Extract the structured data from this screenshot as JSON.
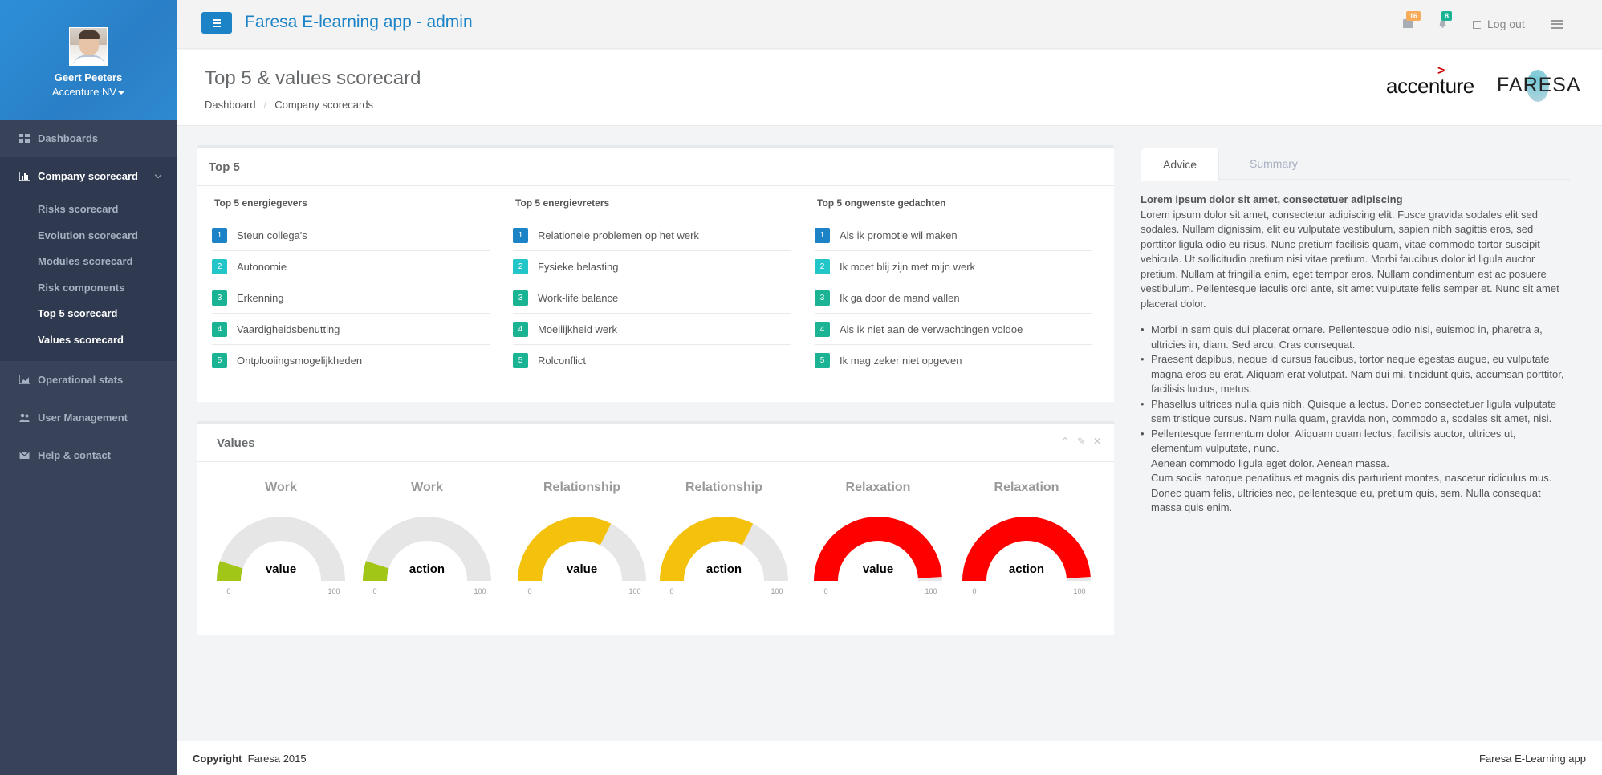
{
  "user": {
    "name": "Geert Peeters",
    "company": "Accenture NV"
  },
  "sidebar": {
    "items": [
      {
        "label": "Dashboards"
      },
      {
        "label": "Company scorecard"
      },
      {
        "label": "Operational stats"
      },
      {
        "label": "User Management"
      },
      {
        "label": "Help & contact"
      }
    ],
    "subitems": [
      {
        "label": "Risks scorecard"
      },
      {
        "label": "Evolution scorecard"
      },
      {
        "label": "Modules scorecard"
      },
      {
        "label": "Risk components"
      },
      {
        "label": "Top 5 scorecard"
      },
      {
        "label": "Values scorecard"
      }
    ]
  },
  "topbar": {
    "title": "Faresa E-learning app - admin",
    "messages_count": "16",
    "notifications_count": "8",
    "logout": "Log out"
  },
  "header": {
    "title": "Top 5 & values scorecard",
    "breadcrumb": [
      "Dashboard",
      "Company scorecards"
    ],
    "logo_accenture": "accenture",
    "logo_faresa": "FARESA"
  },
  "top5": {
    "title": "Top 5",
    "columns": [
      {
        "heading": "Top 5 energiegevers",
        "items": [
          "Steun collega's",
          "Autonomie",
          "Erkenning",
          "Vaardigheidsbenutting",
          "Ontplooiingsmogelijkheden"
        ]
      },
      {
        "heading": "Top 5 energievreters",
        "items": [
          "Relationele problemen op het werk",
          "Fysieke belasting",
          "Work-life balance",
          "Moeilijkheid werk",
          "Rolconflict"
        ]
      },
      {
        "heading": "Top 5 ongwenste gedachten",
        "items": [
          "Als ik promotie wil maken",
          "Ik moet blij zijn met mijn werk",
          "Ik ga door de mand vallen",
          "Als ik niet aan de verwachtingen voldoe",
          "Ik mag zeker niet opgeven"
        ]
      }
    ],
    "numbers": [
      "1",
      "2",
      "3",
      "4",
      "5"
    ],
    "number_colors": [
      "#1c84c6",
      "#23c6c8",
      "#1ab394",
      "#1ab394",
      "#1ab394"
    ]
  },
  "values": {
    "title": "Values",
    "gauges": [
      {
        "title": "Work",
        "label": "value",
        "level": 0.1,
        "color": "#a2c617",
        "min": "0",
        "max": "100"
      },
      {
        "title": "Work",
        "label": "action",
        "level": 0.1,
        "color": "#a2c617",
        "min": "0",
        "max": "100"
      },
      {
        "title": "Relationship",
        "label": "value",
        "level": 0.65,
        "color": "#f4c20d",
        "min": "0",
        "max": "100"
      },
      {
        "title": "Relationship",
        "label": "action",
        "level": 0.65,
        "color": "#f4c20d",
        "min": "0",
        "max": "100"
      },
      {
        "title": "Relaxation",
        "label": "value",
        "level": 0.98,
        "color": "#ff0000",
        "min": "0",
        "max": "100"
      },
      {
        "title": "Relaxation",
        "label": "action",
        "level": 0.98,
        "color": "#ff0000",
        "min": "0",
        "max": "100"
      }
    ]
  },
  "advice": {
    "tabs": [
      "Advice",
      "Summary"
    ],
    "heading": "Lorem ipsum dolor sit amet, consectetuer adipiscing",
    "paragraph": "Lorem ipsum dolor sit amet, consectetur adipiscing elit. Fusce gravida sodales elit sed sodales. Nullam dignissim, elit eu vulputate vestibulum, sapien nibh sagittis eros, sed porttitor ligula odio eu risus. Nunc pretium facilisis quam, vitae commodo tortor suscipit vehicula. Ut sollicitudin pretium nisi vitae pretium. Morbi faucibus dolor id ligula auctor pretium. Nullam at fringilla enim, eget tempor eros. Nullam condimentum est ac posuere vestibulum. Pellentesque iaculis orci ante, sit amet vulputate felis semper et. Nunc sit amet placerat dolor.",
    "bullets": [
      "Morbi in sem quis dui placerat ornare. Pellentesque odio nisi, euismod in, pharetra a, ultricies in, diam. Sed arcu. Cras consequat.",
      "Praesent dapibus, neque id cursus faucibus, tortor neque egestas augue, eu vulputate magna eros eu erat. Aliquam erat volutpat. Nam dui mi, tincidunt quis, accumsan porttitor, facilisis luctus, metus.",
      "Phasellus ultrices nulla quis nibh. Quisque a lectus. Donec consectetuer ligula vulputate sem tristique cursus. Nam nulla quam, gravida non, commodo a, sodales sit amet, nisi.",
      "Pellentesque fermentum dolor. Aliquam quam lectus, facilisis auctor, ultrices ut, elementum vulputate, nunc."
    ],
    "continuation": [
      "Aenean commodo ligula eget dolor. Aenean massa.",
      "Cum sociis natoque penatibus et magnis dis parturient montes, nascetur ridiculus mus. Donec quam felis, ultricies nec, pellentesque eu, pretium quis, sem. Nulla consequat massa quis enim."
    ]
  },
  "footer": {
    "copyright_label": "Copyright",
    "copyright_text": "Faresa 2015",
    "right": "Faresa E-Learning app"
  }
}
